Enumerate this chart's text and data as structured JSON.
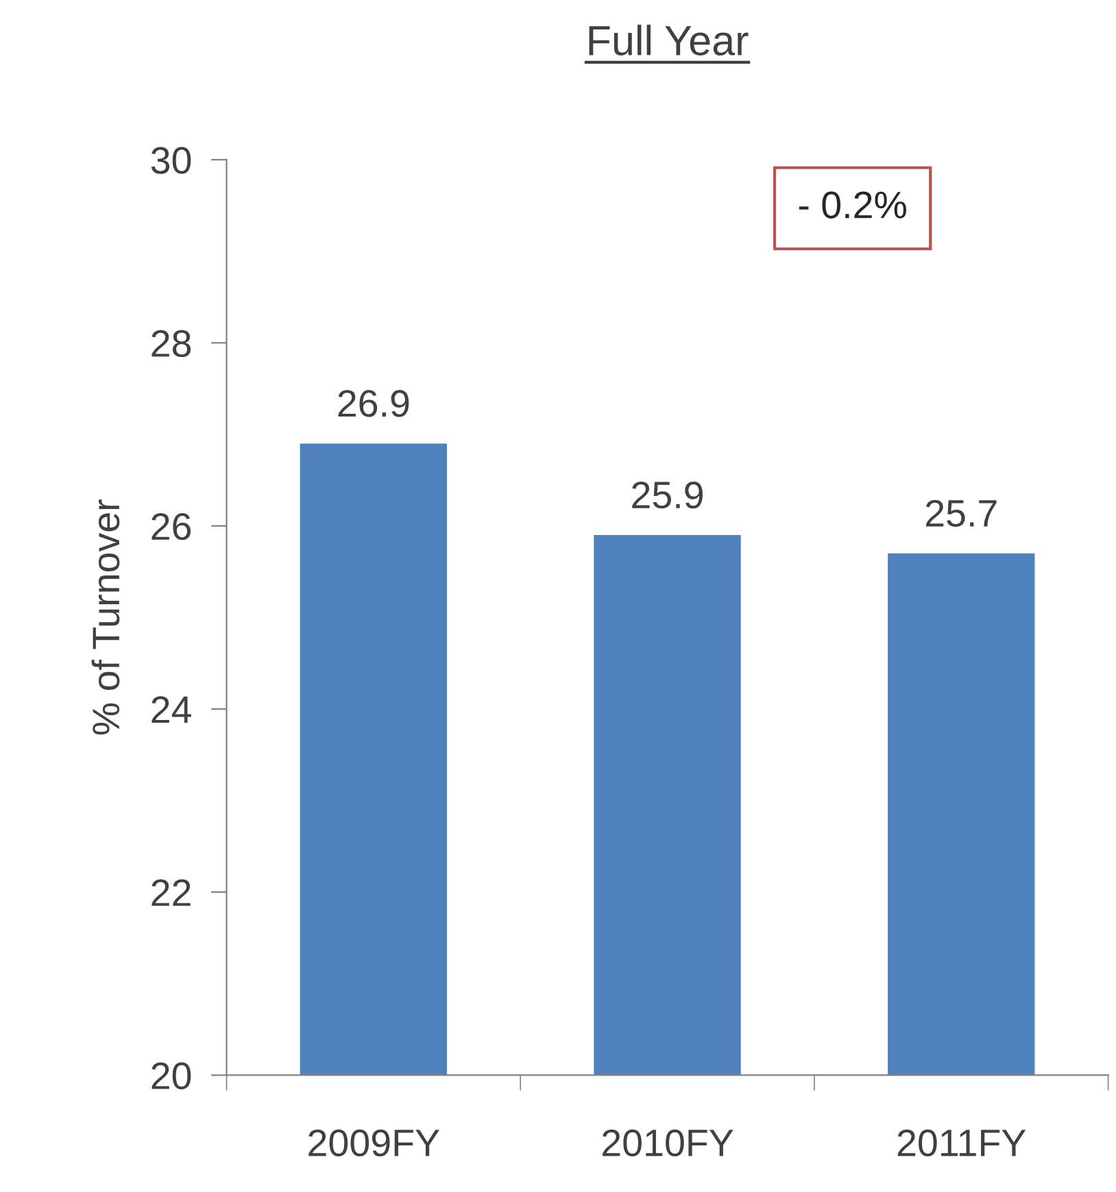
{
  "chart_data": {
    "type": "bar",
    "title": "Full Year",
    "ylabel": "% of Turnover",
    "categories": [
      "2009FY",
      "2010FY",
      "2011FY"
    ],
    "values": [
      26.9,
      25.9,
      25.7
    ],
    "color": "#4f81bd",
    "ylim": [
      20,
      30
    ],
    "yticks": [
      20,
      22,
      24,
      26,
      28,
      30
    ],
    "grid": false,
    "data_labels": true,
    "annotations": [
      "- 0.2%"
    ]
  }
}
